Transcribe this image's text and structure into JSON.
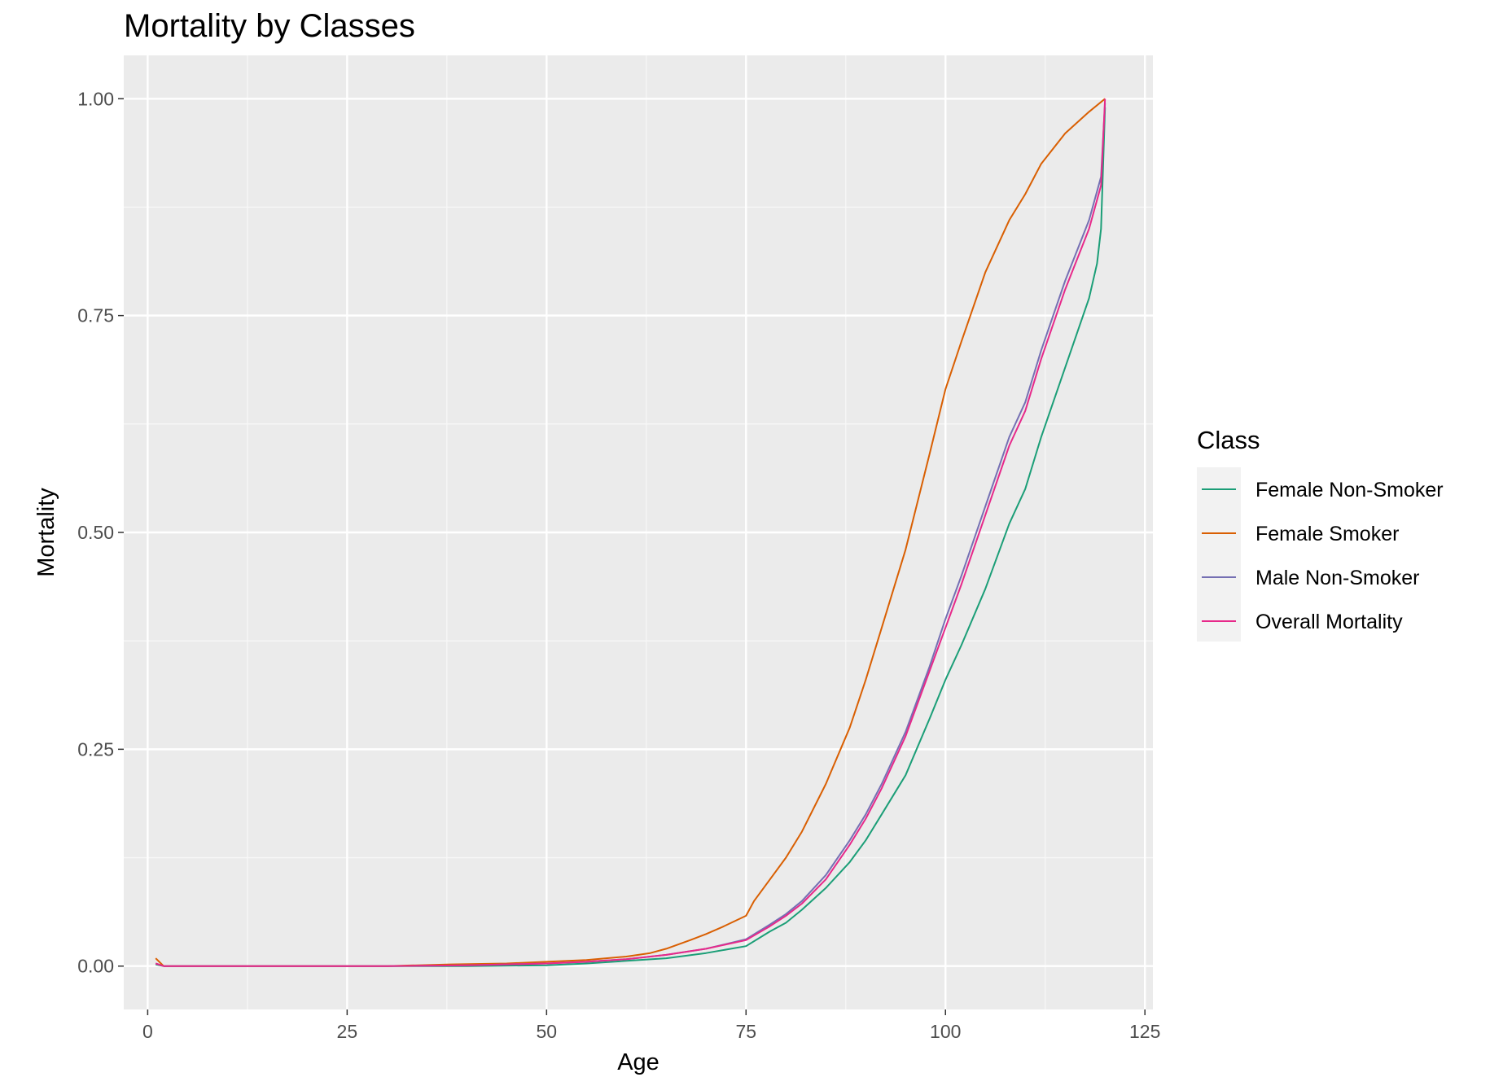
{
  "chart_data": {
    "type": "line",
    "title": "Mortality by Classes",
    "xlabel": "Age",
    "ylabel": "Mortality",
    "xlim": [
      -3,
      126
    ],
    "ylim": [
      -0.05,
      1.05
    ],
    "x_ticks": [
      0,
      25,
      50,
      75,
      100,
      125
    ],
    "x_tick_labels": [
      "0",
      "25",
      "50",
      "75",
      "100",
      "125"
    ],
    "y_ticks": [
      0,
      0.25,
      0.5,
      0.75,
      1
    ],
    "y_tick_labels": [
      "0.00",
      "0.25",
      "0.50",
      "0.75",
      "1.00"
    ],
    "grid": true,
    "panel_background": "#ebebeb",
    "grid_color": "#ffffff",
    "legend": {
      "title": "Class",
      "position": "right"
    },
    "series": [
      {
        "name": "Female Non-Smoker",
        "color": "#1b9e77",
        "x": [
          1,
          2,
          10,
          20,
          30,
          40,
          50,
          55,
          60,
          65,
          70,
          75,
          78,
          80,
          82,
          85,
          88,
          90,
          92,
          95,
          98,
          100,
          102,
          105,
          108,
          110,
          112,
          115,
          118,
          119,
          119.5,
          120
        ],
        "y": [
          0.002,
          0.0,
          0.0,
          0.0,
          0.0,
          0.0,
          0.001,
          0.003,
          0.006,
          0.009,
          0.015,
          0.023,
          0.04,
          0.05,
          0.065,
          0.09,
          0.12,
          0.145,
          0.175,
          0.22,
          0.285,
          0.33,
          0.37,
          0.435,
          0.51,
          0.55,
          0.61,
          0.69,
          0.77,
          0.81,
          0.85,
          0.99
        ]
      },
      {
        "name": "Female Smoker",
        "color": "#d95f02",
        "x": [
          1,
          2,
          10,
          20,
          30,
          38,
          45,
          50,
          55,
          60,
          63,
          65,
          68,
          70,
          72,
          75,
          76,
          78,
          80,
          82,
          85,
          88,
          90,
          92,
          95,
          98,
          100,
          102,
          105,
          108,
          110,
          112,
          115,
          118,
          120
        ],
        "y": [
          0.009,
          0.0,
          0.0,
          0.0,
          0.0,
          0.002,
          0.003,
          0.005,
          0.007,
          0.011,
          0.015,
          0.02,
          0.03,
          0.037,
          0.045,
          0.058,
          0.075,
          0.1,
          0.125,
          0.155,
          0.21,
          0.275,
          0.33,
          0.39,
          0.48,
          0.59,
          0.665,
          0.72,
          0.8,
          0.86,
          0.89,
          0.925,
          0.96,
          0.985,
          1.0
        ]
      },
      {
        "name": "Male Non-Smoker",
        "color": "#7570b3",
        "x": [
          1,
          2,
          10,
          20,
          30,
          40,
          50,
          55,
          60,
          65,
          70,
          75,
          78,
          80,
          82,
          85,
          88,
          90,
          92,
          95,
          98,
          100,
          102,
          105,
          108,
          110,
          112,
          115,
          118,
          119.5,
          120
        ],
        "y": [
          0.003,
          0.0,
          0.0,
          0.0,
          0.0,
          0.001,
          0.003,
          0.005,
          0.008,
          0.013,
          0.02,
          0.031,
          0.048,
          0.06,
          0.075,
          0.105,
          0.145,
          0.175,
          0.21,
          0.27,
          0.345,
          0.4,
          0.45,
          0.53,
          0.61,
          0.65,
          0.71,
          0.79,
          0.86,
          0.91,
          0.995
        ]
      },
      {
        "name": "Overall Mortality",
        "color": "#e7298a",
        "x": [
          1,
          2,
          10,
          20,
          30,
          40,
          50,
          55,
          60,
          65,
          70,
          75,
          78,
          80,
          82,
          85,
          88,
          90,
          92,
          95,
          98,
          100,
          102,
          105,
          108,
          110,
          112,
          115,
          118,
          119.5,
          120
        ],
        "y": [
          0.003,
          0.0,
          0.0,
          0.0,
          0.0,
          0.001,
          0.003,
          0.005,
          0.008,
          0.013,
          0.02,
          0.03,
          0.046,
          0.058,
          0.072,
          0.1,
          0.14,
          0.17,
          0.205,
          0.265,
          0.34,
          0.39,
          0.44,
          0.52,
          0.6,
          0.64,
          0.7,
          0.78,
          0.85,
          0.9,
          1.0
        ]
      }
    ]
  }
}
